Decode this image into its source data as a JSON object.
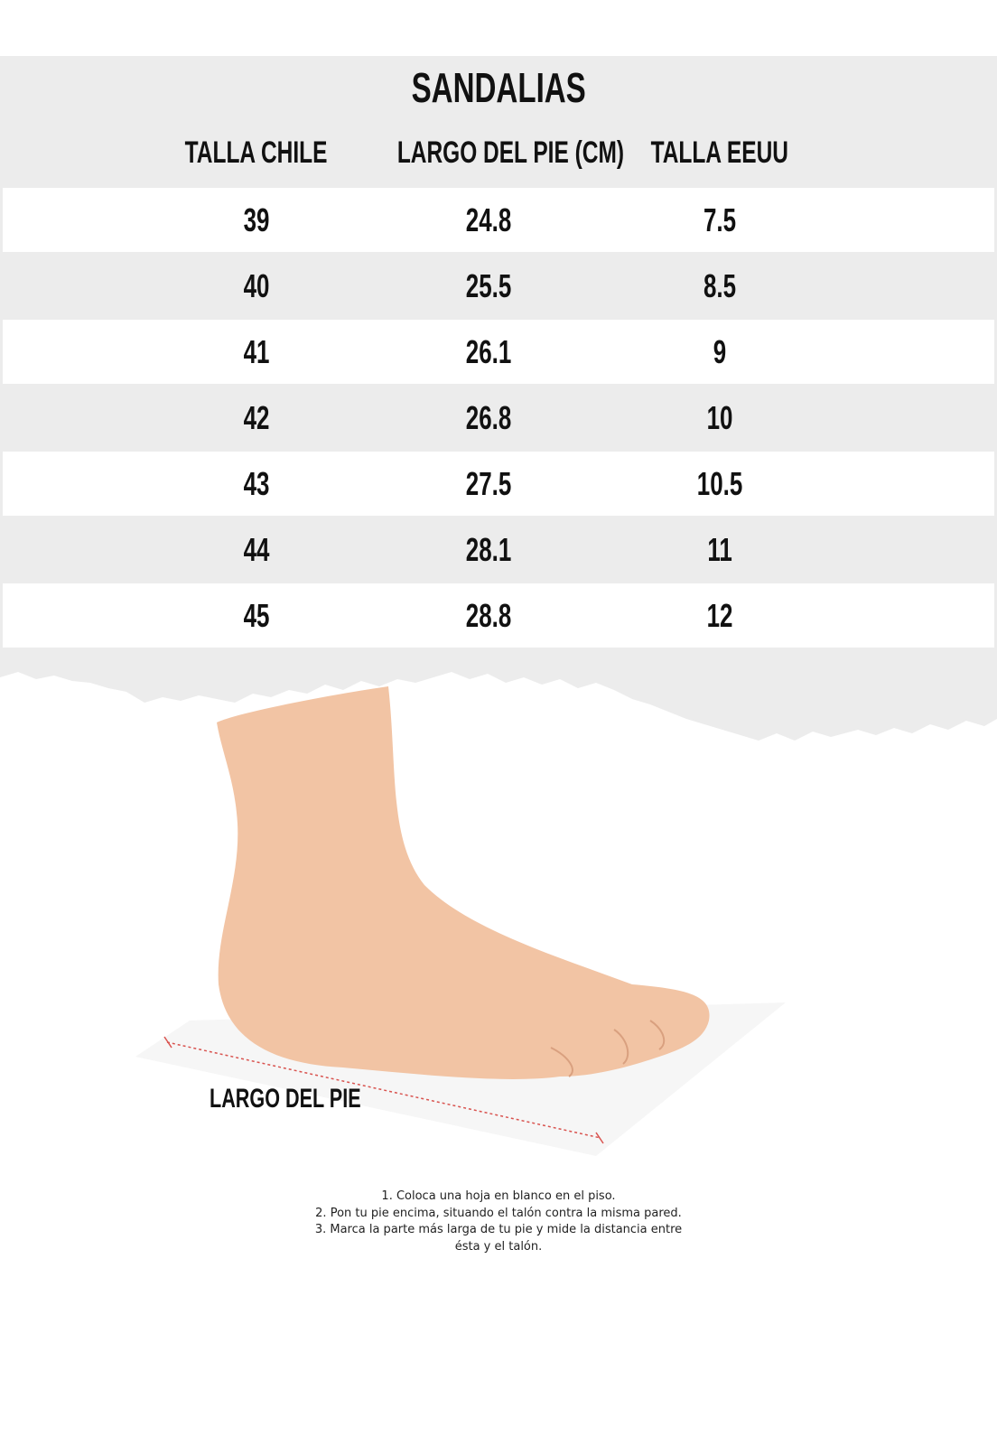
{
  "title": "SANDALIAS",
  "columns": [
    "TALLA CHILE",
    "LARGO DEL PIE (CM)",
    "TALLA EEUU"
  ],
  "rows": [
    [
      "39",
      "24.8",
      "7.5"
    ],
    [
      "40",
      "25.5",
      "8.5"
    ],
    [
      "41",
      "26.1",
      "9"
    ],
    [
      "42",
      "26.8",
      "10"
    ],
    [
      "43",
      "27.5",
      "10.5"
    ],
    [
      "44",
      "28.1",
      "11"
    ],
    [
      "45",
      "28.8",
      "12"
    ]
  ],
  "illustration": {
    "label": "LARGO DEL PIE",
    "measure_line_color": "#d9534f"
  },
  "instructions": [
    "1. Coloca una hoja en blanco en el piso.",
    "2. Pon tu pie encima, situando el talón contra la misma pared.",
    "3. Marca la parte más larga de tu pie y mide la distancia entre",
    "ésta y el talón."
  ]
}
